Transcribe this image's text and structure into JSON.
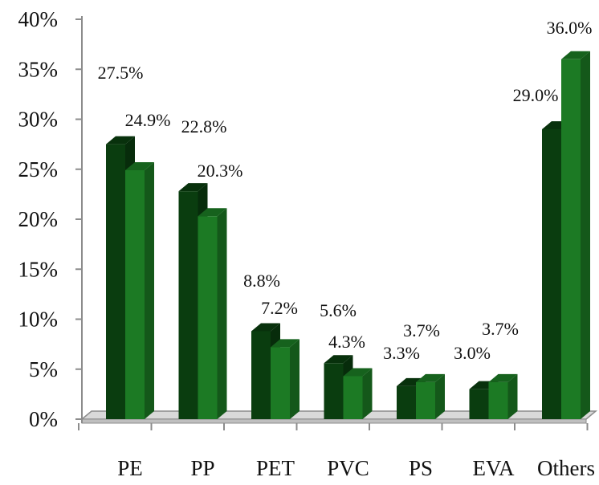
{
  "chart_data": {
    "type": "bar",
    "categories": [
      "PE",
      "PP",
      "PET",
      "PVC",
      "PS",
      "EVA",
      "Others"
    ],
    "series": [
      {
        "values": [
          27.5,
          22.8,
          8.8,
          5.6,
          3.3,
          3.0,
          29.0
        ],
        "color": "#0a3d0f",
        "labels": [
          "27.5%",
          "22.8%",
          "8.8%",
          "5.6%",
          "3.3%",
          "3.0%",
          "29.0%"
        ]
      },
      {
        "values": [
          24.9,
          20.3,
          7.2,
          4.3,
          3.7,
          3.7,
          36.0
        ],
        "color": "#1c7a24",
        "labels": [
          "24.9%",
          "20.3%",
          "7.2%",
          "4.3%",
          "3.7%",
          "3.7%",
          "36.0%"
        ]
      }
    ],
    "ylim": [
      0,
      40
    ],
    "yticks": [
      0,
      5,
      10,
      15,
      20,
      25,
      30,
      35,
      40
    ],
    "ytick_labels": [
      "0%",
      "5%",
      "10%",
      "15%",
      "20%",
      "25%",
      "30%",
      "35%",
      "40%"
    ],
    "style": "3d-clustered-column",
    "grid": false,
    "legend": "none"
  }
}
